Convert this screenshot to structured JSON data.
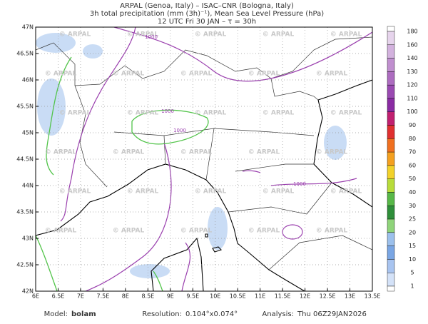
{
  "header": {
    "lines": [
      "ARPAL (Genoa, Italy)  –  ISAC–CNR (Bologna, Italy)",
      "3h total precipitation (mm (3h)⁻¹), Mean Sea Level Pressure (hPa)",
      "12 UTC Fri 30 JAN  –  τ = 30h"
    ]
  },
  "map": {
    "lat_labels": [
      "47N",
      "46.5N",
      "46N",
      "45.5N",
      "45N",
      "44.5N",
      "44N",
      "43.5N",
      "43N",
      "42.5N",
      "42N"
    ],
    "lon_labels": [
      "6E",
      "6.5E",
      "7E",
      "7.5E",
      "8E",
      "8.5E",
      "9E",
      "9.5E",
      "10E",
      "10.5E",
      "11E",
      "11.5E",
      "12E",
      "12.5E",
      "13E",
      "13.5E"
    ],
    "watermark": "© ARPAL",
    "isobar_labels": [
      "1000",
      "1000",
      "1000",
      "1000"
    ]
  },
  "colorbar": {
    "labels": [
      "180",
      "160",
      "140",
      "130",
      "120",
      "110",
      "100",
      "90",
      "80",
      "70",
      "60",
      "50",
      "40",
      "30",
      "25",
      "20",
      "15",
      "10",
      "5",
      "1"
    ],
    "colors": [
      "#ffffff",
      "#e6d4ec",
      "#d3b2de",
      "#c08fcf",
      "#ad6cc0",
      "#9a4ab2",
      "#8a2ba3",
      "#c02070",
      "#e03030",
      "#f07020",
      "#f4a020",
      "#f2d22a",
      "#b8dc3a",
      "#58b848",
      "#2f8f3a",
      "#8fd47a",
      "#9cc0ec",
      "#7aa6e4",
      "#a8c4f0",
      "#d4e2f8",
      "#ffffff"
    ]
  },
  "footer": {
    "model_label": "Model:",
    "model": "bolam",
    "resolution_label": "Resolution:",
    "resolution": "0.104°x0.074°",
    "analysis_label": "Analysis:",
    "analysis": "Thu 06Z29JAN2026"
  }
}
